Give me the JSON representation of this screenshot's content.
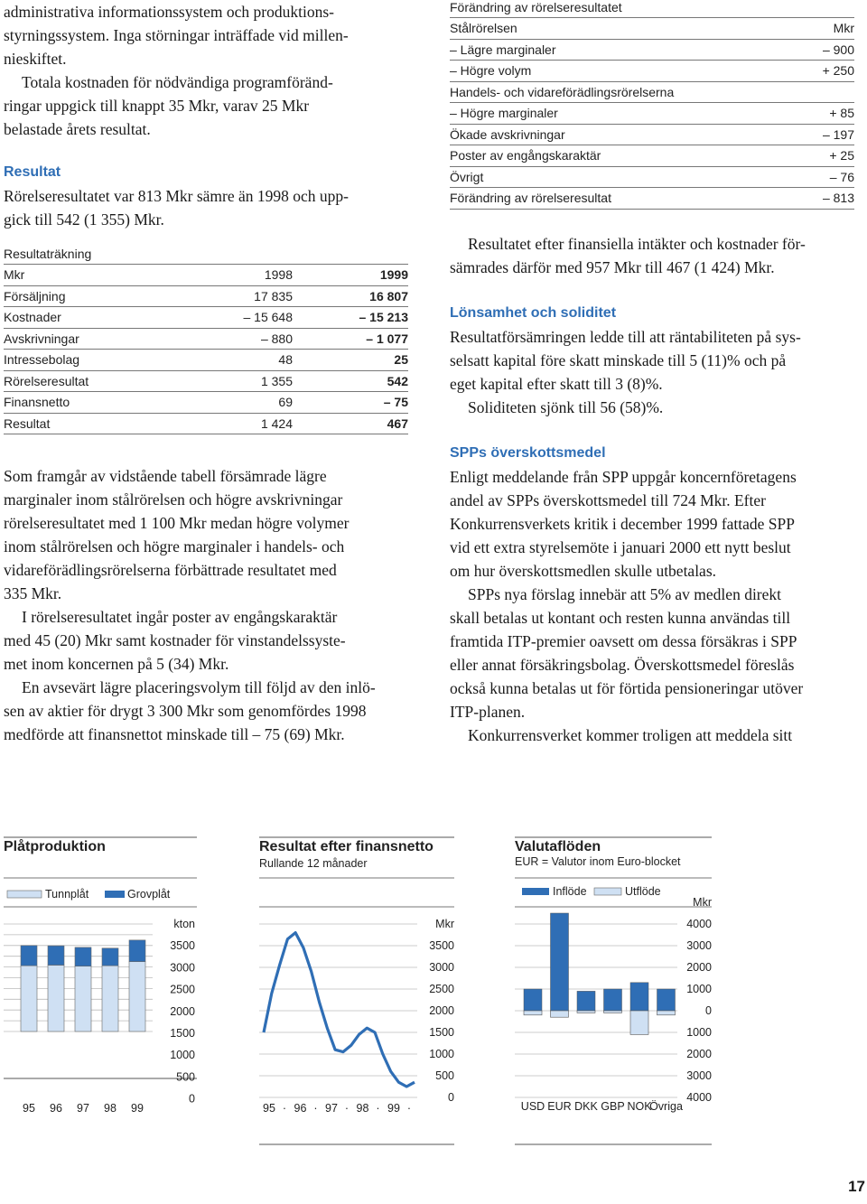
{
  "left": {
    "intro_p1_lines": [
      "administrativa informationssystem och produktions-",
      "styrningssystem. Inga störningar inträffade vid millen-",
      "nieskiftet."
    ],
    "intro_p2_lines": [
      "Totala kostnaden för nödvändiga programföränd-",
      "ringar uppgick till knappt 35 Mkr, varav 25 Mkr",
      "belastade årets resultat."
    ],
    "resultat_heading": "Resultat",
    "resultat_lines": [
      "Rörelseresultatet var 813 Mkr sämre än 1998 och upp-",
      "gick till 542 (1 355) Mkr."
    ],
    "income_table": {
      "caption": "Resultaträkning",
      "header": [
        "Mkr",
        "1998",
        "1999"
      ],
      "rows": [
        [
          "Försäljning",
          "17 835",
          "16 807"
        ],
        [
          "Kostnader",
          "– 15 648",
          "– 15 213"
        ],
        [
          "Avskrivningar",
          "– 880",
          "– 1 077"
        ],
        [
          "Intressebolag",
          "48",
          "25"
        ],
        [
          "Rörelseresultat",
          "1 355",
          "542"
        ],
        [
          "Finansnetto",
          "69",
          "– 75"
        ],
        [
          "Resultat",
          "1 424",
          "467"
        ]
      ]
    },
    "body_p1_lines": [
      "Som framgår av vidstående tabell försämrade lägre",
      "marginaler inom stålrörelsen och högre avskrivningar",
      "rörelseresultatet med 1 100 Mkr medan högre volymer",
      "inom stålrörelsen och högre marginaler i handels- och",
      "vidareförädlingsrörelserna förbättrade resultatet med",
      "335 Mkr."
    ],
    "body_p2_lines": [
      "I rörelseresultatet ingår poster av engångskaraktär",
      "med 45 (20) Mkr samt kostnader för vinstandelssyste-",
      "met inom koncernen på 5 (34) Mkr."
    ],
    "body_p3_lines": [
      "En avsevärt lägre placeringsvolym till följd av den inlö-",
      "sen av aktier för drygt 3 300 Mkr som genomfördes 1998",
      "medförde att finansnettot minskade till – 75 (69) Mkr."
    ]
  },
  "right": {
    "change_table": {
      "caption": "Förändring av rörelseresultatet",
      "rows": [
        [
          "Stålrörelsen",
          "Mkr"
        ],
        [
          "– Lägre marginaler",
          "– 900"
        ],
        [
          "– Högre volym",
          "+ 250"
        ],
        [
          "Handels- och vidareförädlingsrörelserna",
          ""
        ],
        [
          "– Högre marginaler",
          "+ 85"
        ],
        [
          "Ökade avskrivningar",
          "– 197"
        ],
        [
          "Poster av engångskaraktär",
          "+ 25"
        ],
        [
          "Övrigt",
          "– 76"
        ],
        [
          "Förändring av rörelseresultat",
          "– 813"
        ]
      ]
    },
    "p1_lines": [
      "Resultatet efter finansiella intäkter och kostnader för-",
      "sämrades därför med 957 Mkr till 467 (1 424) Mkr."
    ],
    "lonsamhet_heading": "Lönsamhet och soliditet",
    "lonsamhet_lines": [
      "Resultatförsämringen ledde till att räntabiliteten på sys-",
      "selsatt kapital före skatt minskade till 5 (11)% och på",
      "eget kapital efter skatt till 3 (8)%."
    ],
    "soliditet_line": "Soliditeten sjönk till 56 (58)%.",
    "spp_heading": "SPPs överskottsmedel",
    "spp_p1_lines": [
      "Enligt meddelande från SPP uppgår koncernföretagens",
      "andel av SPPs överskottsmedel till 724 Mkr. Efter",
      "Konkurrensverkets kritik i december 1999 fattade SPP",
      "vid ett extra styrelsemöte i januari 2000 ett nytt beslut",
      "om hur överskottsmedlen skulle utbetalas."
    ],
    "spp_p2_lines": [
      "SPPs nya förslag innebär att 5% av medlen direkt",
      "skall betalas ut kontant och resten kunna användas till",
      "framtida ITP-premier oavsett om dessa försäkras i SPP",
      "eller annat försäkringsbolag. Överskottsmedel föreslås",
      "också kunna betalas ut för förtida pensioneringar utöver",
      "ITP-planen."
    ],
    "spp_p3_lines": [
      "Konkurrensverket kommer troligen att meddela sitt"
    ]
  },
  "chart_data": [
    {
      "type": "bar",
      "title": "Plåtproduktion",
      "unit": "kton",
      "categories": [
        "95",
        "96",
        "97",
        "98",
        "99"
      ],
      "series": [
        {
          "name": "Tunnplåt",
          "values": [
            2450,
            2470,
            2430,
            2450,
            2600
          ],
          "color": "#cfe0f3"
        },
        {
          "name": "Grovplåt",
          "values": [
            750,
            720,
            700,
            650,
            800
          ],
          "color": "#2f6eb5"
        }
      ],
      "yticks": [
        "kton",
        "3500",
        "3000",
        "2500",
        "2000",
        "1500",
        "1000",
        "500",
        "0"
      ],
      "ylim": [
        0,
        4000
      ],
      "grid": true,
      "legend": "top"
    },
    {
      "type": "line",
      "title": "Resultat efter finansnetto",
      "subtitle": "Rullande 12 månader",
      "unit": "Mkr",
      "x_labels": [
        "95",
        "96",
        "97",
        "98",
        "99"
      ],
      "values": [
        1500,
        2400,
        3050,
        3650,
        3800,
        3450,
        2900,
        2200,
        1600,
        1100,
        1050,
        1200,
        1450,
        1600,
        1500,
        1000,
        600,
        350,
        250,
        350
      ],
      "color": "#2f6eb5",
      "yticks": [
        "Mkr",
        "3500",
        "3000",
        "2500",
        "2000",
        "1500",
        "1000",
        "500",
        "0"
      ],
      "ylim": [
        0,
        4000
      ],
      "grid": true
    },
    {
      "type": "bar",
      "title": "Valutaflöden",
      "subtitle": "EUR = Valutor inom Euro-blocket",
      "unit": "Mkr",
      "categories": [
        "USD",
        "EUR",
        "DKK",
        "GBP",
        "NOK",
        "Övriga"
      ],
      "series": [
        {
          "name": "Inflöde",
          "values": [
            1000,
            4500,
            900,
            1000,
            1300,
            1000
          ],
          "color": "#2f6eb5"
        },
        {
          "name": "Utflöde",
          "values": [
            -200,
            -300,
            -100,
            -100,
            -1100,
            -200
          ],
          "color": "#cfe0f3"
        }
      ],
      "yticks": [
        "4000",
        "3000",
        "2000",
        "1000",
        "0",
        "1000",
        "2000",
        "3000",
        "4000"
      ],
      "ylim": [
        -4000,
        4000
      ],
      "grid": true,
      "legend": "top"
    }
  ],
  "page_number": "17"
}
